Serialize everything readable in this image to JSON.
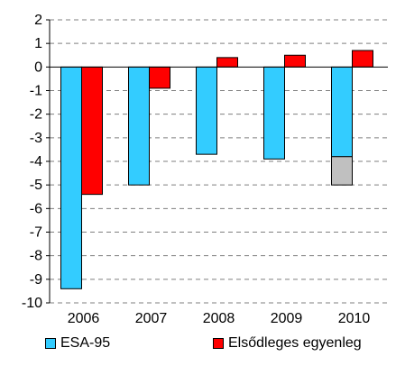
{
  "chart_data": {
    "type": "bar",
    "categories": [
      "2006",
      "2007",
      "2008",
      "2009",
      "2010"
    ],
    "series": [
      {
        "name": "ESA-95",
        "values": [
          -9.4,
          -5.0,
          -3.7,
          -3.9,
          -3.8
        ],
        "color": "#33ccff"
      },
      {
        "name": "Elsődleges egyenleg",
        "values": [
          -5.4,
          -0.9,
          0.4,
          0.5,
          0.7
        ],
        "color": "#ff0000"
      }
    ],
    "extra_segment": {
      "category": "2010",
      "series": "ESA-95",
      "from": -3.8,
      "to": -5.0,
      "color": "#c0c0c0"
    },
    "ylim": [
      -10,
      2
    ],
    "yticks": [
      "2",
      "1",
      "0",
      "-1",
      "-2",
      "-3",
      "-4",
      "-5",
      "-6",
      "-7",
      "-8",
      "-9",
      "-10"
    ],
    "grid": "horizontal dashed",
    "legend_position": "bottom"
  }
}
